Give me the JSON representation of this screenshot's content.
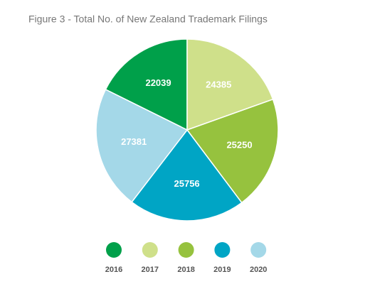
{
  "chart_data": {
    "type": "pie",
    "title": "Figure 3 - Total No. of New Zealand Trademark Filings",
    "categories": [
      "2016",
      "2017",
      "2018",
      "2019",
      "2020"
    ],
    "values": [
      22039,
      24385,
      25250,
      25756,
      27381
    ],
    "colors": [
      "#00a04a",
      "#cfe08a",
      "#96c23e",
      "#00a5c5",
      "#a4d8e8"
    ],
    "legend": "bottom"
  }
}
